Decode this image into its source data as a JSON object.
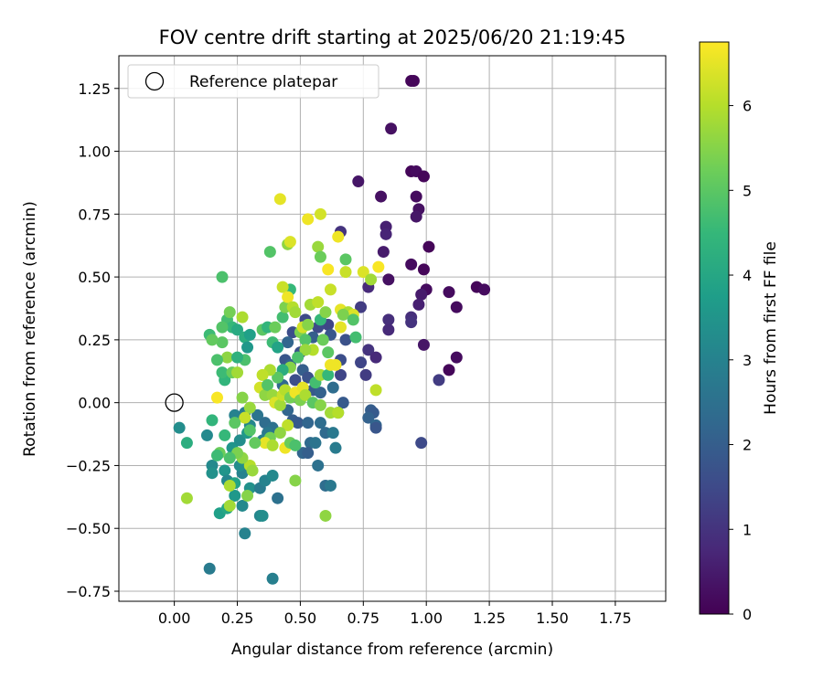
{
  "chart_data": {
    "type": "scatter",
    "title": "FOV centre drift starting at 2025/06/20 21:19:45",
    "xlabel": "Angular distance from reference (arcmin)",
    "ylabel": "Rotation from reference (arcmin)",
    "xlim": [
      -0.22,
      1.95
    ],
    "ylim": [
      -0.79,
      1.38
    ],
    "xticks": [
      "0.00",
      "0.25",
      "0.50",
      "0.75",
      "1.00",
      "1.25",
      "1.50",
      "1.75"
    ],
    "yticks": [
      "−0.75",
      "−0.50",
      "−0.25",
      "0.00",
      "0.25",
      "0.50",
      "0.75",
      "1.00",
      "1.25"
    ],
    "grid": true,
    "legend": {
      "position": "top-left",
      "entries": [
        "Reference platepar"
      ]
    },
    "reference_point": {
      "x": 0.0,
      "y": 0.0
    },
    "colorbar": {
      "label": "Hours from first FF file",
      "range": [
        0,
        6.75
      ],
      "ticks": [
        "0",
        "1",
        "2",
        "3",
        "4",
        "5",
        "6"
      ],
      "colormap": "viridis",
      "colors": [
        "#440154",
        "#482878",
        "#3e4a89",
        "#31688e",
        "#26828e",
        "#1f9e89",
        "#35b779",
        "#6ece58",
        "#b5de2b",
        "#fde725"
      ]
    },
    "points": [
      {
        "x": 0.94,
        "y": 1.28,
        "t": 0.1
      },
      {
        "x": 0.95,
        "y": 1.28,
        "t": 0.1
      },
      {
        "x": 0.86,
        "y": 1.09,
        "t": 0.3
      },
      {
        "x": 0.94,
        "y": 0.92,
        "t": 0.1
      },
      {
        "x": 0.96,
        "y": 0.92,
        "t": 0.2
      },
      {
        "x": 0.99,
        "y": 0.9,
        "t": 0.1
      },
      {
        "x": 0.73,
        "y": 0.88,
        "t": 0.4
      },
      {
        "x": 0.82,
        "y": 0.82,
        "t": 0.3
      },
      {
        "x": 0.96,
        "y": 0.82,
        "t": 0.2
      },
      {
        "x": 0.97,
        "y": 0.77,
        "t": 0.3
      },
      {
        "x": 0.96,
        "y": 0.74,
        "t": 0.4
      },
      {
        "x": 0.84,
        "y": 0.7,
        "t": 0.6
      },
      {
        "x": 0.84,
        "y": 0.67,
        "t": 0.7
      },
      {
        "x": 0.66,
        "y": 0.68,
        "t": 1.0
      },
      {
        "x": 1.01,
        "y": 0.62,
        "t": 0.1
      },
      {
        "x": 0.83,
        "y": 0.6,
        "t": 0.5
      },
      {
        "x": 0.94,
        "y": 0.55,
        "t": 0.2
      },
      {
        "x": 0.99,
        "y": 0.53,
        "t": 0.1
      },
      {
        "x": 0.85,
        "y": 0.49,
        "t": 0.3
      },
      {
        "x": 0.77,
        "y": 0.46,
        "t": 0.8
      },
      {
        "x": 1.0,
        "y": 0.45,
        "t": 0.2
      },
      {
        "x": 1.09,
        "y": 0.44,
        "t": 0.2
      },
      {
        "x": 1.2,
        "y": 0.46,
        "t": 0.1
      },
      {
        "x": 1.23,
        "y": 0.45,
        "t": 0.2
      },
      {
        "x": 0.98,
        "y": 0.43,
        "t": 0.5
      },
      {
        "x": 0.97,
        "y": 0.39,
        "t": 0.6
      },
      {
        "x": 1.12,
        "y": 0.38,
        "t": 0.2
      },
      {
        "x": 0.74,
        "y": 0.38,
        "t": 1.2
      },
      {
        "x": 0.94,
        "y": 0.34,
        "t": 0.9
      },
      {
        "x": 0.85,
        "y": 0.33,
        "t": 0.9
      },
      {
        "x": 0.94,
        "y": 0.32,
        "t": 1.0
      },
      {
        "x": 0.85,
        "y": 0.29,
        "t": 0.8
      },
      {
        "x": 0.99,
        "y": 0.23,
        "t": 0.4
      },
      {
        "x": 0.77,
        "y": 0.21,
        "t": 1.0
      },
      {
        "x": 0.8,
        "y": 0.18,
        "t": 0.8
      },
      {
        "x": 1.12,
        "y": 0.18,
        "t": 0.2
      },
      {
        "x": 1.09,
        "y": 0.13,
        "t": 0.1
      },
      {
        "x": 1.05,
        "y": 0.09,
        "t": 1.2
      },
      {
        "x": 0.74,
        "y": 0.16,
        "t": 1.4
      },
      {
        "x": 0.76,
        "y": 0.11,
        "t": 1.2
      },
      {
        "x": 0.98,
        "y": -0.16,
        "t": 1.5
      },
      {
        "x": 0.78,
        "y": -0.03,
        "t": 2.0
      },
      {
        "x": 0.79,
        "y": -0.04,
        "t": 1.9
      },
      {
        "x": 0.77,
        "y": -0.06,
        "t": 2.1
      },
      {
        "x": 0.8,
        "y": -0.09,
        "t": 2.2
      },
      {
        "x": 0.8,
        "y": -0.1,
        "t": 1.8
      },
      {
        "x": 0.66,
        "y": 0.11,
        "t": 1.4
      },
      {
        "x": 0.67,
        "y": 0.0,
        "t": 1.9
      },
      {
        "x": 0.66,
        "y": 0.17,
        "t": 1.6
      },
      {
        "x": 0.68,
        "y": 0.25,
        "t": 1.7
      },
      {
        "x": 0.61,
        "y": 0.31,
        "t": 1.4
      },
      {
        "x": 0.62,
        "y": 0.27,
        "t": 1.8
      },
      {
        "x": 0.57,
        "y": 0.3,
        "t": 1.5
      },
      {
        "x": 0.55,
        "y": 0.26,
        "t": 2.0
      },
      {
        "x": 0.52,
        "y": 0.33,
        "t": 1.5
      },
      {
        "x": 0.47,
        "y": 0.28,
        "t": 1.6
      },
      {
        "x": 0.45,
        "y": 0.24,
        "t": 2.2
      },
      {
        "x": 0.5,
        "y": 0.2,
        "t": 1.7
      },
      {
        "x": 0.44,
        "y": 0.17,
        "t": 1.8
      },
      {
        "x": 0.46,
        "y": 0.15,
        "t": 2.1
      },
      {
        "x": 0.48,
        "y": 0.09,
        "t": 1.6
      },
      {
        "x": 0.43,
        "y": 0.07,
        "t": 2.3
      },
      {
        "x": 0.51,
        "y": 0.13,
        "t": 2.0
      },
      {
        "x": 0.53,
        "y": 0.1,
        "t": 1.7
      },
      {
        "x": 0.55,
        "y": 0.05,
        "t": 1.9
      },
      {
        "x": 0.58,
        "y": 0.04,
        "t": 2.1
      },
      {
        "x": 0.49,
        "y": 0.02,
        "t": 1.8
      },
      {
        "x": 0.45,
        "y": -0.03,
        "t": 2.2
      },
      {
        "x": 0.47,
        "y": -0.07,
        "t": 2.0
      },
      {
        "x": 0.49,
        "y": -0.08,
        "t": 1.9
      },
      {
        "x": 0.53,
        "y": -0.08,
        "t": 2.2
      },
      {
        "x": 0.58,
        "y": -0.08,
        "t": 2.4
      },
      {
        "x": 0.6,
        "y": -0.12,
        "t": 2.3
      },
      {
        "x": 0.54,
        "y": -0.16,
        "t": 2.3
      },
      {
        "x": 0.56,
        "y": -0.16,
        "t": 2.6
      },
      {
        "x": 0.51,
        "y": -0.2,
        "t": 2.2
      },
      {
        "x": 0.53,
        "y": -0.2,
        "t": 2.0
      },
      {
        "x": 0.57,
        "y": -0.25,
        "t": 2.5
      },
      {
        "x": 0.64,
        "y": -0.18,
        "t": 2.8
      },
      {
        "x": 0.63,
        "y": -0.12,
        "t": 2.7
      },
      {
        "x": 0.65,
        "y": -0.04,
        "t": 2.9
      },
      {
        "x": 0.63,
        "y": 0.06,
        "t": 2.4
      },
      {
        "x": 0.6,
        "y": -0.33,
        "t": 2.4
      },
      {
        "x": 0.62,
        "y": -0.33,
        "t": 2.7
      },
      {
        "x": 0.41,
        "y": -0.38,
        "t": 2.5
      },
      {
        "x": 0.39,
        "y": -0.7,
        "t": 2.9
      },
      {
        "x": 0.14,
        "y": -0.66,
        "t": 2.8
      },
      {
        "x": 0.28,
        "y": -0.52,
        "t": 3.0
      },
      {
        "x": 0.34,
        "y": -0.45,
        "t": 3.1
      },
      {
        "x": 0.35,
        "y": -0.45,
        "t": 3.3
      },
      {
        "x": 0.27,
        "y": -0.41,
        "t": 3.2
      },
      {
        "x": 0.3,
        "y": -0.34,
        "t": 3.4
      },
      {
        "x": 0.34,
        "y": -0.34,
        "t": 2.8
      },
      {
        "x": 0.36,
        "y": -0.31,
        "t": 3.0
      },
      {
        "x": 0.39,
        "y": -0.29,
        "t": 3.2
      },
      {
        "x": 0.27,
        "y": -0.28,
        "t": 3.0
      },
      {
        "x": 0.26,
        "y": -0.25,
        "t": 3.3
      },
      {
        "x": 0.2,
        "y": -0.27,
        "t": 3.5
      },
      {
        "x": 0.15,
        "y": -0.25,
        "t": 3.2
      },
      {
        "x": 0.15,
        "y": -0.28,
        "t": 3.4
      },
      {
        "x": 0.21,
        "y": -0.31,
        "t": 3.1
      },
      {
        "x": 0.24,
        "y": -0.37,
        "t": 3.6
      },
      {
        "x": 0.18,
        "y": -0.44,
        "t": 3.8
      },
      {
        "x": 0.21,
        "y": -0.42,
        "t": 4.0
      },
      {
        "x": 0.24,
        "y": -0.32,
        "t": 3.9
      },
      {
        "x": 0.23,
        "y": -0.18,
        "t": 3.5
      },
      {
        "x": 0.26,
        "y": -0.15,
        "t": 3.3
      },
      {
        "x": 0.29,
        "y": -0.12,
        "t": 3.6
      },
      {
        "x": 0.24,
        "y": -0.05,
        "t": 3.0
      },
      {
        "x": 0.28,
        "y": -0.04,
        "t": 2.8
      },
      {
        "x": 0.33,
        "y": -0.05,
        "t": 2.6
      },
      {
        "x": 0.36,
        "y": -0.08,
        "t": 2.4
      },
      {
        "x": 0.39,
        "y": -0.1,
        "t": 2.5
      },
      {
        "x": 0.37,
        "y": -0.12,
        "t": 2.7
      },
      {
        "x": 0.35,
        "y": -0.15,
        "t": 2.9
      },
      {
        "x": 0.3,
        "y": -0.09,
        "t": 3.1
      },
      {
        "x": 0.13,
        "y": -0.13,
        "t": 3.2
      },
      {
        "x": 0.02,
        "y": -0.1,
        "t": 3.3
      },
      {
        "x": 0.05,
        "y": -0.16,
        "t": 4.2
      },
      {
        "x": 0.05,
        "y": -0.38,
        "t": 5.8
      },
      {
        "x": 0.22,
        "y": -0.41,
        "t": 5.8
      },
      {
        "x": 0.22,
        "y": -0.33,
        "t": 5.9
      },
      {
        "x": 0.29,
        "y": -0.37,
        "t": 5.5
      },
      {
        "x": 0.3,
        "y": -0.25,
        "t": 6.0
      },
      {
        "x": 0.31,
        "y": -0.27,
        "t": 5.7
      },
      {
        "x": 0.27,
        "y": -0.22,
        "t": 5.6
      },
      {
        "x": 0.25,
        "y": -0.2,
        "t": 5.4
      },
      {
        "x": 0.22,
        "y": -0.22,
        "t": 4.8
      },
      {
        "x": 0.18,
        "y": -0.2,
        "t": 5.2
      },
      {
        "x": 0.17,
        "y": -0.21,
        "t": 4.6
      },
      {
        "x": 0.2,
        "y": -0.13,
        "t": 4.5
      },
      {
        "x": 0.15,
        "y": -0.07,
        "t": 4.4
      },
      {
        "x": 0.17,
        "y": 0.02,
        "t": 6.7
      },
      {
        "x": 0.2,
        "y": 0.09,
        "t": 4.4
      },
      {
        "x": 0.19,
        "y": 0.12,
        "t": 4.6
      },
      {
        "x": 0.23,
        "y": 0.12,
        "t": 5.2
      },
      {
        "x": 0.25,
        "y": 0.12,
        "t": 5.8
      },
      {
        "x": 0.28,
        "y": 0.17,
        "t": 4.8
      },
      {
        "x": 0.21,
        "y": 0.18,
        "t": 5.6
      },
      {
        "x": 0.17,
        "y": 0.17,
        "t": 4.8
      },
      {
        "x": 0.19,
        "y": 0.24,
        "t": 5.0
      },
      {
        "x": 0.14,
        "y": 0.27,
        "t": 4.6
      },
      {
        "x": 0.15,
        "y": 0.25,
        "t": 5.1
      },
      {
        "x": 0.21,
        "y": 0.33,
        "t": 4.7
      },
      {
        "x": 0.22,
        "y": 0.36,
        "t": 5.3
      },
      {
        "x": 0.27,
        "y": 0.34,
        "t": 5.9
      },
      {
        "x": 0.23,
        "y": 0.3,
        "t": 4.5
      },
      {
        "x": 0.25,
        "y": 0.29,
        "t": 4.1
      },
      {
        "x": 0.19,
        "y": 0.3,
        "t": 4.9
      },
      {
        "x": 0.19,
        "y": 0.5,
        "t": 4.8
      },
      {
        "x": 0.38,
        "y": 0.6,
        "t": 4.9
      },
      {
        "x": 0.35,
        "y": 0.29,
        "t": 5.0
      },
      {
        "x": 0.37,
        "y": 0.3,
        "t": 4.4
      },
      {
        "x": 0.39,
        "y": 0.24,
        "t": 4.6
      },
      {
        "x": 0.41,
        "y": 0.22,
        "t": 3.9
      },
      {
        "x": 0.4,
        "y": 0.3,
        "t": 5.2
      },
      {
        "x": 0.43,
        "y": 0.34,
        "t": 4.7
      },
      {
        "x": 0.44,
        "y": 0.38,
        "t": 5.4
      },
      {
        "x": 0.46,
        "y": 0.45,
        "t": 4.5
      },
      {
        "x": 0.45,
        "y": 0.63,
        "t": 5.6
      },
      {
        "x": 0.46,
        "y": 0.64,
        "t": 6.4
      },
      {
        "x": 0.42,
        "y": 0.81,
        "t": 6.5
      },
      {
        "x": 0.43,
        "y": 0.46,
        "t": 6.2
      },
      {
        "x": 0.45,
        "y": 0.42,
        "t": 6.6
      },
      {
        "x": 0.47,
        "y": 0.38,
        "t": 6.0
      },
      {
        "x": 0.48,
        "y": 0.36,
        "t": 5.8
      },
      {
        "x": 0.5,
        "y": 0.28,
        "t": 5.4
      },
      {
        "x": 0.52,
        "y": 0.25,
        "t": 4.9
      },
      {
        "x": 0.51,
        "y": 0.3,
        "t": 6.3
      },
      {
        "x": 0.53,
        "y": 0.31,
        "t": 5.5
      },
      {
        "x": 0.54,
        "y": 0.39,
        "t": 5.8
      },
      {
        "x": 0.57,
        "y": 0.4,
        "t": 6.1
      },
      {
        "x": 0.58,
        "y": 0.33,
        "t": 4.5
      },
      {
        "x": 0.6,
        "y": 0.36,
        "t": 5.5
      },
      {
        "x": 0.62,
        "y": 0.45,
        "t": 6.2
      },
      {
        "x": 0.61,
        "y": 0.53,
        "t": 6.7
      },
      {
        "x": 0.53,
        "y": 0.73,
        "t": 6.6
      },
      {
        "x": 0.58,
        "y": 0.75,
        "t": 6.3
      },
      {
        "x": 0.57,
        "y": 0.62,
        "t": 5.7
      },
      {
        "x": 0.58,
        "y": 0.58,
        "t": 5.2
      },
      {
        "x": 0.65,
        "y": 0.66,
        "t": 6.6
      },
      {
        "x": 0.68,
        "y": 0.57,
        "t": 5.0
      },
      {
        "x": 0.68,
        "y": 0.52,
        "t": 6.2
      },
      {
        "x": 0.75,
        "y": 0.52,
        "t": 6.4
      },
      {
        "x": 0.78,
        "y": 0.49,
        "t": 5.8
      },
      {
        "x": 0.81,
        "y": 0.54,
        "t": 6.7
      },
      {
        "x": 0.66,
        "y": 0.37,
        "t": 6.5
      },
      {
        "x": 0.69,
        "y": 0.36,
        "t": 5.9
      },
      {
        "x": 0.71,
        "y": 0.35,
        "t": 6.4
      },
      {
        "x": 0.66,
        "y": 0.3,
        "t": 6.5
      },
      {
        "x": 0.64,
        "y": 0.15,
        "t": 6.6
      },
      {
        "x": 0.61,
        "y": 0.2,
        "t": 5.0
      },
      {
        "x": 0.59,
        "y": 0.25,
        "t": 5.2
      },
      {
        "x": 0.55,
        "y": 0.21,
        "t": 6.0
      },
      {
        "x": 0.52,
        "y": 0.21,
        "t": 5.7
      },
      {
        "x": 0.49,
        "y": 0.18,
        "t": 4.8
      },
      {
        "x": 0.46,
        "y": 0.14,
        "t": 5.5
      },
      {
        "x": 0.43,
        "y": 0.13,
        "t": 4.2
      },
      {
        "x": 0.41,
        "y": 0.1,
        "t": 5.0
      },
      {
        "x": 0.38,
        "y": 0.13,
        "t": 5.9
      },
      {
        "x": 0.35,
        "y": 0.11,
        "t": 6.1
      },
      {
        "x": 0.34,
        "y": 0.06,
        "t": 6.3
      },
      {
        "x": 0.36,
        "y": 0.03,
        "t": 5.6
      },
      {
        "x": 0.37,
        "y": 0.07,
        "t": 4.9
      },
      {
        "x": 0.39,
        "y": 0.03,
        "t": 5.7
      },
      {
        "x": 0.4,
        "y": 0.0,
        "t": 6.4
      },
      {
        "x": 0.42,
        "y": -0.01,
        "t": 5.8
      },
      {
        "x": 0.43,
        "y": 0.03,
        "t": 6.2
      },
      {
        "x": 0.44,
        "y": 0.05,
        "t": 6.0
      },
      {
        "x": 0.46,
        "y": 0.02,
        "t": 5.3
      },
      {
        "x": 0.48,
        "y": 0.04,
        "t": 6.6
      },
      {
        "x": 0.5,
        "y": 0.01,
        "t": 5.4
      },
      {
        "x": 0.51,
        "y": 0.06,
        "t": 6.5
      },
      {
        "x": 0.52,
        "y": 0.03,
        "t": 5.9
      },
      {
        "x": 0.55,
        "y": 0.0,
        "t": 5.0
      },
      {
        "x": 0.58,
        "y": -0.01,
        "t": 5.5
      },
      {
        "x": 0.56,
        "y": 0.08,
        "t": 4.7
      },
      {
        "x": 0.58,
        "y": 0.11,
        "t": 5.8
      },
      {
        "x": 0.61,
        "y": 0.11,
        "t": 4.5
      },
      {
        "x": 0.45,
        "y": -0.09,
        "t": 6.1
      },
      {
        "x": 0.42,
        "y": -0.12,
        "t": 5.6
      },
      {
        "x": 0.38,
        "y": -0.14,
        "t": 5.3
      },
      {
        "x": 0.36,
        "y": -0.16,
        "t": 6.5
      },
      {
        "x": 0.39,
        "y": -0.17,
        "t": 5.9
      },
      {
        "x": 0.44,
        "y": -0.18,
        "t": 6.6
      },
      {
        "x": 0.46,
        "y": -0.16,
        "t": 5.2
      },
      {
        "x": 0.48,
        "y": -0.17,
        "t": 4.8
      },
      {
        "x": 0.32,
        "y": -0.16,
        "t": 5.1
      },
      {
        "x": 0.3,
        "y": -0.11,
        "t": 4.9
      },
      {
        "x": 0.3,
        "y": -0.02,
        "t": 5.7
      },
      {
        "x": 0.28,
        "y": -0.06,
        "t": 6.2
      },
      {
        "x": 0.27,
        "y": 0.02,
        "t": 5.5
      },
      {
        "x": 0.24,
        "y": -0.08,
        "t": 5.0
      },
      {
        "x": 0.6,
        "y": -0.45,
        "t": 5.6
      },
      {
        "x": 0.48,
        "y": -0.31,
        "t": 5.5
      },
      {
        "x": 0.62,
        "y": -0.04,
        "t": 5.8
      },
      {
        "x": 0.65,
        "y": -0.04,
        "t": 6.0
      },
      {
        "x": 0.8,
        "y": 0.05,
        "t": 6.1
      },
      {
        "x": 0.72,
        "y": 0.26,
        "t": 4.7
      },
      {
        "x": 0.67,
        "y": 0.35,
        "t": 5.4
      },
      {
        "x": 0.62,
        "y": 0.15,
        "t": 6.6
      },
      {
        "x": 0.71,
        "y": 0.33,
        "t": 4.9
      },
      {
        "x": 0.28,
        "y": 0.26,
        "t": 4.2
      },
      {
        "x": 0.29,
        "y": 0.22,
        "t": 3.6
      },
      {
        "x": 0.25,
        "y": 0.18,
        "t": 4.3
      },
      {
        "x": 0.3,
        "y": 0.27,
        "t": 3.8
      }
    ]
  }
}
